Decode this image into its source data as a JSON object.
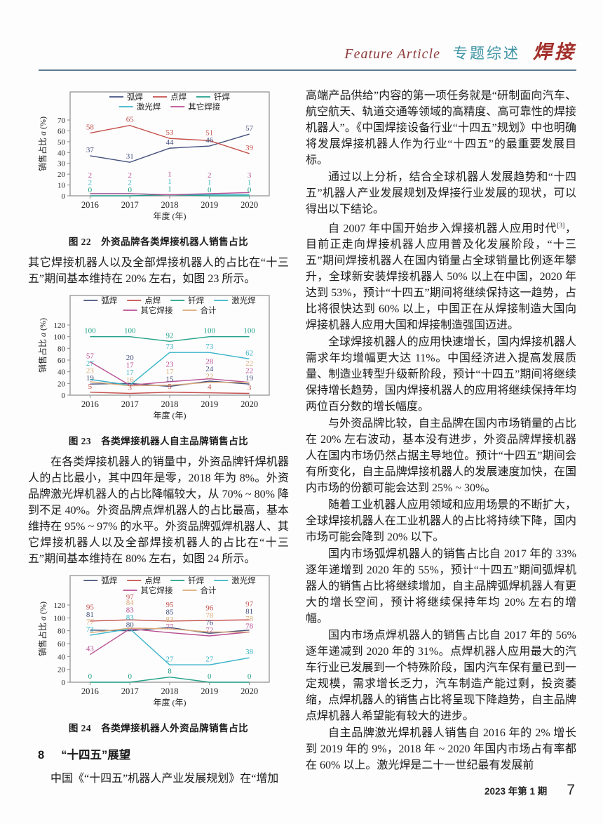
{
  "header": {
    "feature_article": "Feature Article",
    "column_title": "专题综述",
    "journal_name": "焊接"
  },
  "left_column": {
    "para_after_fig22": "其它焊接机器人以及全部焊接机器人的占比在“十三五”期间基本维持在 20% 左右，如图 23 所示。",
    "para_after_fig23": "在各类焊接机器人的销量中，外资品牌钎焊机器人的占比最小，其中四年是零，2018 年为 8%。外资品牌激光焊机器人的占比降幅较大，从 70% ~ 80% 降到不足 40%。外资品牌点焊机器人的占比最高，基本维持在 95% ~ 97% 的水平。外资品牌弧焊机器人、其它焊接机器人以及全部焊接机器人的占比在“十三五”期间基本维持在 80% 左右，如图 24 所示。",
    "section": {
      "number": "8",
      "title": "“十四五”展望"
    },
    "last_para": "中国《“十四五”机器人产业发展规划》在“增加"
  },
  "right_column": {
    "p1": "高端产品供给”内容的第一项任务就是“研制面向汽车、航空航天、轨道交通等领域的高精度、高可靠性的焊接机器人”。《中国焊接设备行业“十四五”规划》中也明确将发展焊接机器人作为行业“十四五”的最重要发展目标。",
    "p2": "通过以上分析，结合全球机器人发展趋势和“十四五”机器人产业发展规划及焊接行业发展的现状，可以得出以下结论。",
    "p3": {
      "pre": "自 2007 年中国开始步入焊接机器人应用时代",
      "sup": "[3]",
      "post": "，目前正走向焊接机器人应用普及化发展阶段，“十三五”期间焊接机器人在国内销量占全球销量比例逐年攀升，全球新安装焊接机器人 50% 以上在中国，2020 年达到 53%，预计“十四五”期间将继续保持这一趋势，占比将很快达到 60% 以上，中国正在从焊接制造大国向焊接机器人应用大国和焊接制造强国迈进。"
    },
    "p4": "全球焊接机器人的应用快速增长，国内焊接机器人需求年均增幅更大达 11%。中国经济进入提高发展质量、制造业转型升级新阶段，预计“十四五”期间将继续保持增长趋势，国内焊接机器人的应用将继续保持年均两位百分数的增长幅度。",
    "p5": "与外资品牌比较，自主品牌在国内市场销量的占比在 20% 左右波动，基本没有进步，外资品牌焊接机器人在国内市场仍然占据主导地位。预计“十四五”期间会有所变化，自主品牌焊接机器人的发展速度加快，在国内市场的份额可能会达到 25% ~ 30%。",
    "p6": "随着工业机器人应用领域和应用场景的不断扩大，全球焊接机器人在工业机器人的占比将持续下降，国内市场可能会降到 20% 以下。",
    "p7": "国内市场弧焊机器人的销售占比自 2017 年的 33% 逐年递增到 2020 年的 55%，预计“十四五”期间弧焊机器人的销售占比将继续增加，自主品牌弧焊机器人有更大的增长空间，预计将继续保持年均 20% 左右的增幅。",
    "p8": "国内市场点焊机器人的销售占比自 2017 年的 56% 逐年递减到 2020 年的 31%。点焊机器人应用最大的汽车行业已发展到一个特殊阶段，国内汽车保有量已到一定规模，需求增长乏力，汽车制造产能过剩，投资萎缩，点焊机器人的销售占比将呈现下降趋势，自主品牌点焊机器人希望能有较大的进步。",
    "p9": "自主品牌激光焊机器人销售自 2016 年的 2% 增长到 2019 年的 9%，2018 年 ~ 2020 年国内市场占有率都在 60% 以上。激光焊是二十一世纪最有发展前"
  },
  "chart_data": [
    {
      "type": "line",
      "fig_label": "图 22",
      "title": "外资品牌各类焊接机器人销售占比",
      "xlabel": "年度 (年)",
      "ylabel_prefix": "销售占比 ",
      "ylabel_var": "a",
      "ylabel_suffix": " (%)",
      "categories": [
        "2016",
        "2017",
        "2018",
        "2019",
        "2020"
      ],
      "ylim": [
        0,
        70
      ],
      "yticks": [
        0,
        10,
        20,
        30,
        40,
        50,
        60,
        70
      ],
      "grid": false,
      "legend_position": "top-inside",
      "series": [
        {
          "name": "弧焊",
          "color": "#44507e",
          "values": [
            37,
            31,
            44,
            46,
            57
          ]
        },
        {
          "name": "点焊",
          "color": "#c4504b",
          "values": [
            58,
            65,
            53,
            51,
            39
          ]
        },
        {
          "name": "钎焊",
          "color": "#23a188",
          "values": [
            0,
            0,
            1,
            0,
            0
          ]
        },
        {
          "name": "激光焊",
          "color": "#3ab4c9",
          "values": [
            2,
            2,
            1,
            1,
            1
          ]
        },
        {
          "name": "其它焊接",
          "color": "#b84f93",
          "values": [
            2,
            2,
            1,
            2,
            3
          ]
        }
      ]
    },
    {
      "type": "line",
      "fig_label": "图 23",
      "title": "各类焊接机器人自主品牌销售占比",
      "xlabel": "年度 (年)",
      "ylabel_prefix": "销售占比 ",
      "ylabel_var": "a",
      "ylabel_suffix": " (%)",
      "categories": [
        "2016",
        "2017",
        "2018",
        "2019",
        "2020"
      ],
      "ylim": [
        0,
        120
      ],
      "yticks": [
        0,
        20,
        40,
        60,
        80,
        100,
        120
      ],
      "grid": false,
      "legend_position": "top-inside",
      "series": [
        {
          "name": "弧焊",
          "color": "#44507e",
          "values": [
            19,
            20,
            15,
            24,
            19
          ]
        },
        {
          "name": "点焊",
          "color": "#c4504b",
          "values": [
            5,
            3,
            5,
            4,
            3
          ]
        },
        {
          "name": "钎焊",
          "color": "#23a188",
          "values": [
            100,
            100,
            92,
            100,
            100
          ]
        },
        {
          "name": "激光焊",
          "color": "#3ab4c9",
          "values": [
            27,
            17,
            73,
            73,
            62
          ]
        },
        {
          "name": "其它焊接",
          "color": "#b84f93",
          "values": [
            57,
            17,
            23,
            28,
            22
          ]
        },
        {
          "name": "合计",
          "color": "#daa977",
          "values": [
            23,
            16,
            17,
            22,
            22
          ]
        }
      ]
    },
    {
      "type": "line",
      "fig_label": "图 24",
      "title": "各类焊接机器人外资品牌销售占比",
      "xlabel": "年度 (年)",
      "ylabel_prefix": "销售占比 ",
      "ylabel_var": "a",
      "ylabel_suffix": " (%)",
      "categories": [
        "2016",
        "2017",
        "2018",
        "2019",
        "2020"
      ],
      "ylim": [
        0,
        120
      ],
      "yticks": [
        0,
        20,
        40,
        60,
        80,
        100,
        120
      ],
      "grid": false,
      "legend_position": "top-inside",
      "series": [
        {
          "name": "弧焊",
          "color": "#44507e",
          "values": [
            81,
            80,
            85,
            76,
            81
          ]
        },
        {
          "name": "点焊",
          "color": "#c4504b",
          "values": [
            95,
            97,
            95,
            96,
            97
          ]
        },
        {
          "name": "钎焊",
          "color": "#23a188",
          "values": [
            0,
            0,
            8,
            0,
            0
          ]
        },
        {
          "name": "激光焊",
          "color": "#3ab4c9",
          "values": [
            73,
            83,
            27,
            27,
            38
          ]
        },
        {
          "name": "其它焊接",
          "color": "#b84f93",
          "values": [
            43,
            83,
            77,
            72,
            78
          ]
        },
        {
          "name": "合计",
          "color": "#daa977",
          "values": [
            77,
            84,
            83,
            78,
            78
          ]
        }
      ]
    }
  ],
  "footer": {
    "issue": "2023 年第 1 期",
    "page": "7"
  }
}
